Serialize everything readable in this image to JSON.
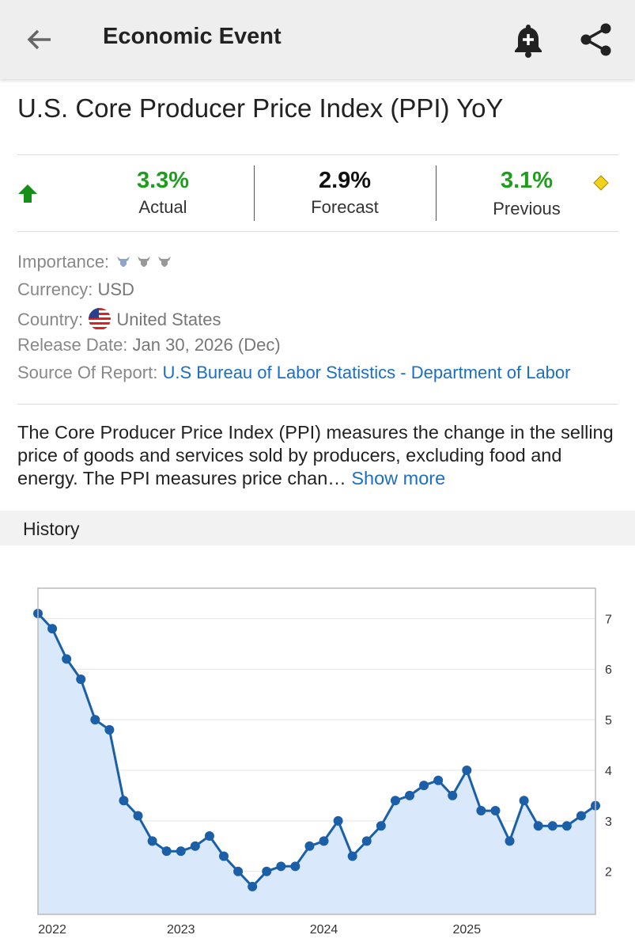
{
  "header": {
    "title": "Economic Event"
  },
  "event": {
    "title": "U.S. Core Producer Price Index (PPI) YoY"
  },
  "stats": [
    {
      "value": "3.3%",
      "label": "Actual"
    },
    {
      "value": "2.9%",
      "label": "Forecast"
    },
    {
      "value": "3.1%",
      "label": "Previous"
    }
  ],
  "details": {
    "importance": {
      "label": "Importance:"
    },
    "currency": {
      "label": "Currency:",
      "value": "USD"
    },
    "country": {
      "label": "Country:",
      "value": "United States"
    },
    "release_date": {
      "label": "Release Date:",
      "value": "Jan 30, 2026 (Dec)"
    },
    "source": {
      "label": "Source Of Report:",
      "value": "U.S Bureau of Labor Statistics - Department of Labor"
    }
  },
  "description": {
    "text": "The Core Producer Price Index (PPI) measures the change in the selling price of goods and services sold by producers, excluding food and energy. The PPI measures price chan…",
    "more": "Show more"
  },
  "history": {
    "title": "History"
  },
  "chart_data": {
    "type": "line",
    "categories": [
      null,
      "2022",
      null,
      null,
      null,
      null,
      null,
      null,
      null,
      null,
      "2023",
      null,
      null,
      null,
      null,
      null,
      null,
      null,
      null,
      null,
      "2024",
      null,
      null,
      null,
      null,
      null,
      null,
      null,
      null,
      null,
      "2025",
      null,
      null,
      null,
      null,
      null,
      null,
      null,
      null,
      null
    ],
    "values": [
      7.1,
      6.8,
      6.2,
      5.8,
      5.0,
      4.8,
      3.4,
      3.1,
      2.6,
      2.4,
      2.4,
      2.5,
      2.7,
      2.3,
      2.0,
      1.7,
      2.0,
      2.1,
      2.1,
      2.5,
      2.6,
      3.0,
      2.3,
      2.6,
      2.9,
      3.4,
      3.5,
      3.7,
      3.8,
      3.5,
      4.0,
      3.2,
      3.2,
      2.6,
      3.4,
      2.9,
      2.9,
      2.9,
      3.1,
      3.3
    ],
    "color": "#1a5fa8",
    "area_color": "#d9e8fb",
    "ylim": [
      1.15,
      7.6
    ],
    "yticks": [
      2,
      3,
      4,
      5,
      6,
      7
    ],
    "y_axis_side": "right",
    "grid": true
  }
}
